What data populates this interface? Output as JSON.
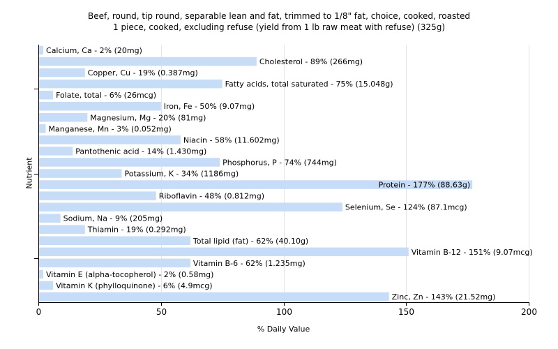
{
  "chart_data": {
    "type": "bar",
    "orientation": "horizontal",
    "title": "Beef, round, tip round, separable lean and fat, trimmed to 1/8\" fat, choice, cooked, roasted",
    "subtitle": "1 piece, cooked, excluding refuse (yield from 1 lb raw meat with refuse) (325g)",
    "xlabel": "% Daily Value",
    "ylabel": "Nutrient",
    "xlim": [
      0,
      200
    ],
    "xticks": [
      "0",
      "50",
      "100",
      "150",
      "200"
    ],
    "grid": true,
    "bar_color": "#c7dcf6",
    "categories": [
      "Calcium, Ca",
      "Cholesterol",
      "Copper, Cu",
      "Fatty acids, total saturated",
      "Folate, total",
      "Iron, Fe",
      "Magnesium, Mg",
      "Manganese, Mn",
      "Niacin",
      "Pantothenic acid",
      "Phosphorus, P",
      "Potassium, K",
      "Protein",
      "Riboflavin",
      "Selenium, Se",
      "Sodium, Na",
      "Thiamin",
      "Total lipid (fat)",
      "Vitamin B-12",
      "Vitamin B-6",
      "Vitamin E (alpha-tocopherol)",
      "Vitamin K (phylloquinone)",
      "Zinc, Zn"
    ],
    "values": [
      2,
      89,
      19,
      75,
      6,
      50,
      20,
      3,
      58,
      14,
      74,
      34,
      177,
      48,
      124,
      9,
      19,
      62,
      151,
      62,
      2,
      6,
      143
    ],
    "labels": [
      "Calcium, Ca - 2% (20mg)",
      "Cholesterol - 89% (266mg)",
      "Copper, Cu - 19% (0.387mg)",
      "Fatty acids, total saturated - 75% (15.048g)",
      "Folate, total - 6% (26mcg)",
      "Iron, Fe - 50% (9.07mg)",
      "Magnesium, Mg - 20% (81mg)",
      "Manganese, Mn - 3% (0.052mg)",
      "Niacin - 58% (11.602mg)",
      "Pantothenic acid - 14% (1.430mg)",
      "Phosphorus, P - 74% (744mg)",
      "Potassium, K - 34% (1186mg)",
      "Protein - 177% (88.63g)",
      "Riboflavin - 48% (0.812mg)",
      "Selenium, Se - 124% (87.1mcg)",
      "Sodium, Na - 9% (205mg)",
      "Thiamin - 19% (0.292mg)",
      "Total lipid (fat) - 62% (40.10g)",
      "Vitamin B-12 - 151% (9.07mcg)",
      "Vitamin B-6 - 62% (1.235mg)",
      "Vitamin E (alpha-tocopherol) - 2% (0.58mg)",
      "Vitamin K (phylloquinone) - 6% (4.9mcg)",
      "Zinc, Zn - 143% (21.52mg)"
    ]
  }
}
